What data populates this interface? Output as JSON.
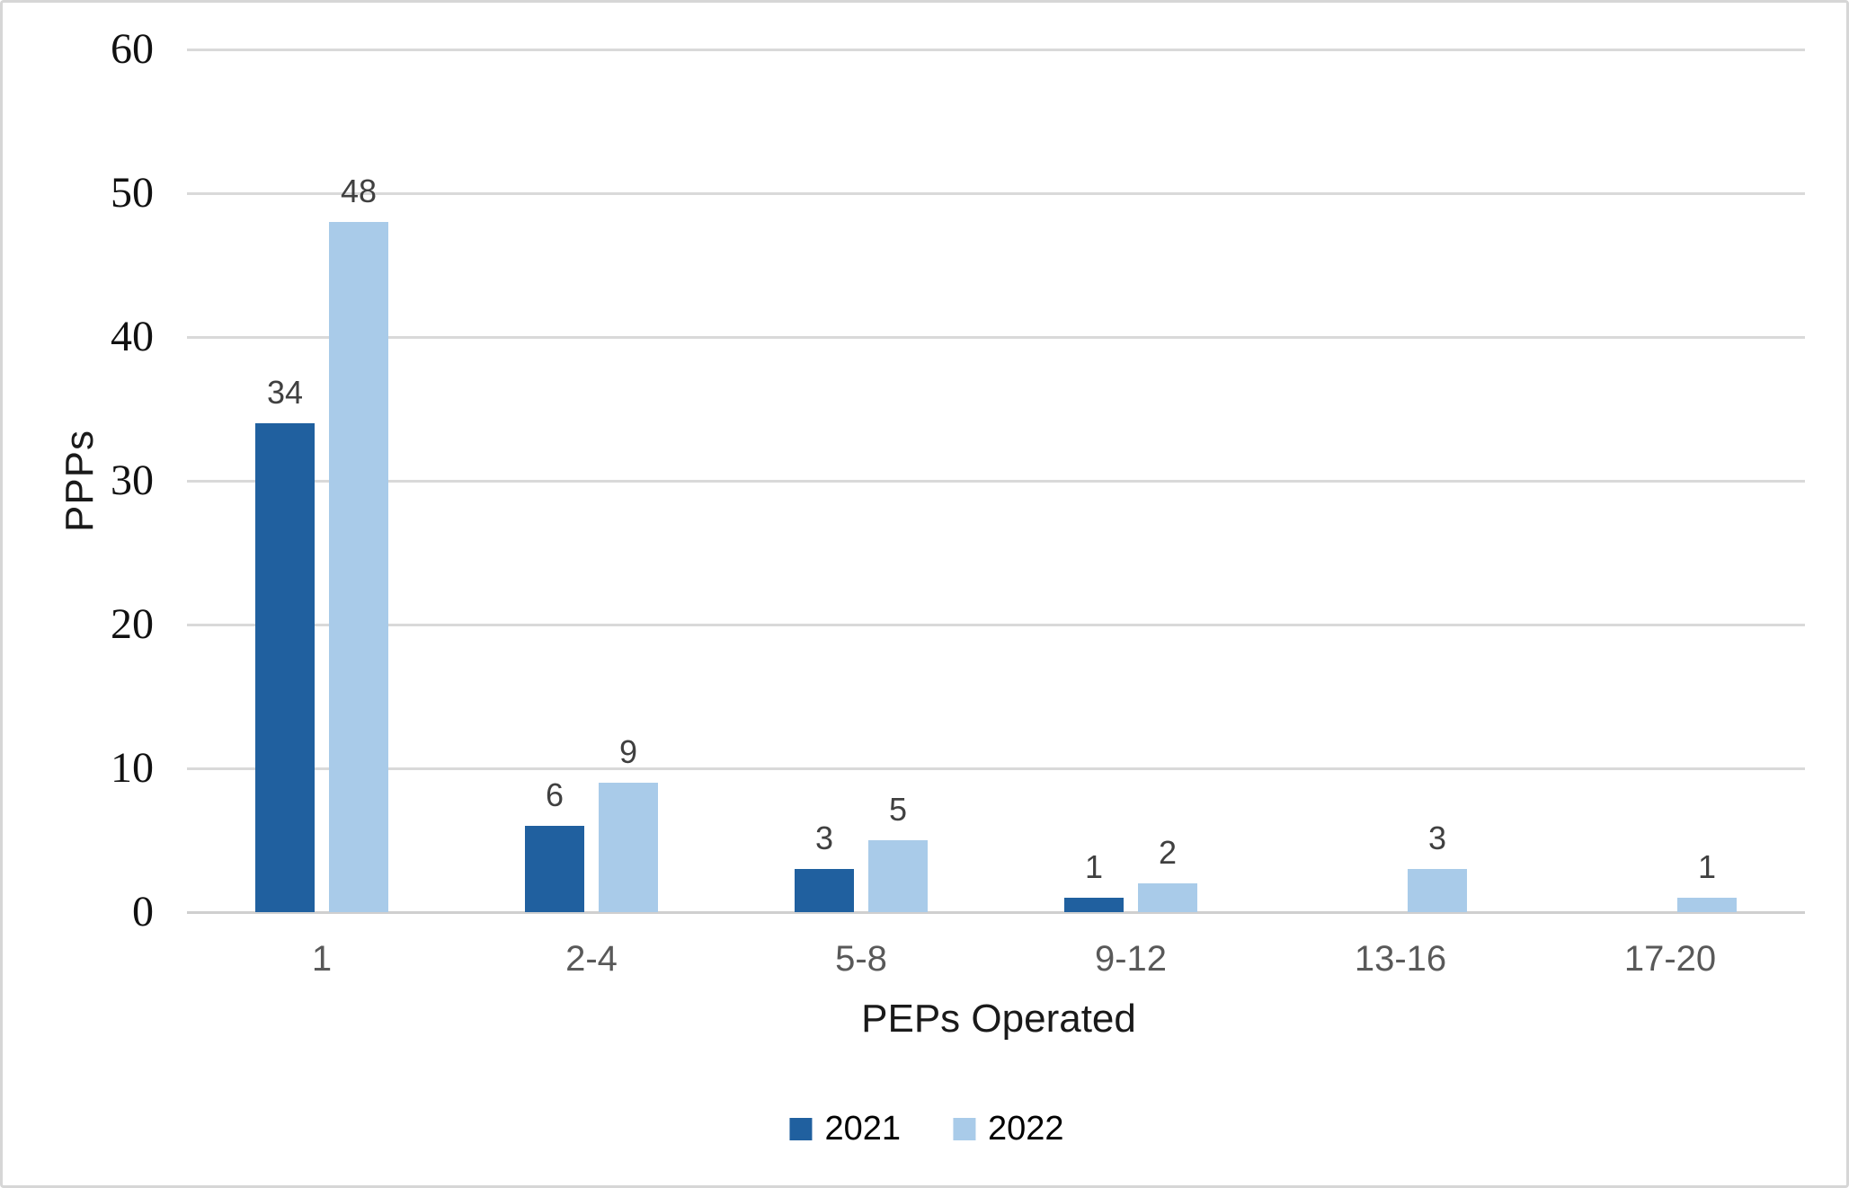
{
  "chart_data": {
    "type": "bar",
    "title": "",
    "categories": [
      "1",
      "2-4",
      "5-8",
      "9-12",
      "13-16",
      "17-20"
    ],
    "series": [
      {
        "name": "2021",
        "color": "#20609F",
        "values": [
          34,
          6,
          3,
          1,
          null,
          null
        ]
      },
      {
        "name": "2022",
        "color": "#A9CBE9",
        "values": [
          48,
          9,
          5,
          2,
          3,
          1
        ]
      }
    ],
    "data_labels": {
      "2021": [
        "34",
        "6",
        "3",
        "1",
        "",
        ""
      ],
      "2022": [
        "48",
        "9",
        "5",
        "2",
        "3",
        "1"
      ]
    },
    "xlabel": "PEPs Operated",
    "ylabel": "PPPs",
    "ylim": [
      0,
      60
    ],
    "yticks": [
      0,
      10,
      20,
      30,
      40,
      50,
      60
    ],
    "grid": "horizontal-only",
    "legend_position": "bottom-center",
    "legend_entries": [
      "2021",
      "2022"
    ]
  },
  "style_colors": {
    "gridline": "#d9d9d9",
    "axis_baseline": "#cfcfcf",
    "ytick_text": "#111111",
    "xtick_text": "#595959",
    "data_label_text": "#404040",
    "axis_title_text": "#1a1a1a",
    "frame_border": "#d6d6d6",
    "background": "#ffffff"
  }
}
